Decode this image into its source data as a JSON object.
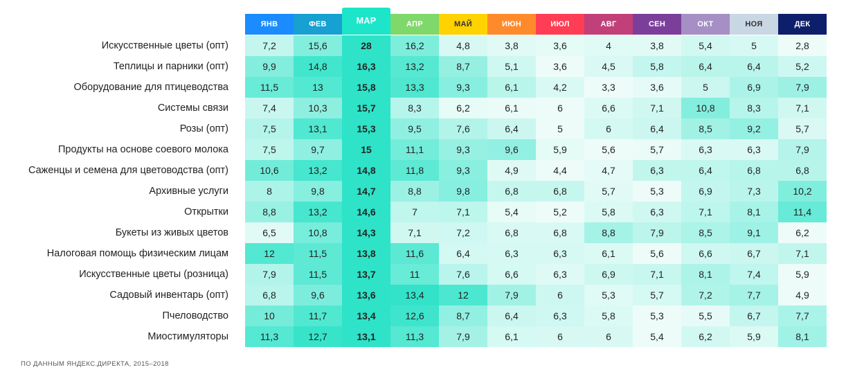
{
  "chart_data": {
    "type": "heatmap",
    "highlight_column": 2,
    "columns": [
      {
        "label": "ЯНВ",
        "color": "#1a8cff",
        "text_color": "#ffffff"
      },
      {
        "label": "ФЕВ",
        "color": "#17a0d2",
        "text_color": "#ffffff"
      },
      {
        "label": "МАР",
        "color": "#1de5c9",
        "text_color": "#ffffff"
      },
      {
        "label": "АПР",
        "color": "#7fd86a",
        "text_color": "#ffffff"
      },
      {
        "label": "МАЙ",
        "color": "#ffd200",
        "text_color": "#333333"
      },
      {
        "label": "ИЮН",
        "color": "#ff8a2b",
        "text_color": "#ffffff"
      },
      {
        "label": "ИЮЛ",
        "color": "#ff3d55",
        "text_color": "#ffffff"
      },
      {
        "label": "АВГ",
        "color": "#c2407a",
        "text_color": "#ffffff"
      },
      {
        "label": "СЕН",
        "color": "#7b3f9b",
        "text_color": "#ffffff"
      },
      {
        "label": "ОКТ",
        "color": "#a58fc4",
        "text_color": "#ffffff"
      },
      {
        "label": "НОЯ",
        "color": "#c9d6e3",
        "text_color": "#333333"
      },
      {
        "label": "ДЕК",
        "color": "#0d1f6b",
        "text_color": "#ffffff"
      }
    ],
    "rows": [
      {
        "label": "Искусственные цветы (опт)",
        "values": [
          "7,2",
          "15,6",
          "28",
          "16,2",
          "4,8",
          "3,8",
          "3,6",
          "4",
          "3,8",
          "5,4",
          "5",
          "2,8"
        ]
      },
      {
        "label": "Теплицы и парники (опт)",
        "values": [
          "9,9",
          "14,8",
          "16,3",
          "13,2",
          "8,7",
          "5,1",
          "3,6",
          "4,5",
          "5,8",
          "6,4",
          "6,4",
          "5,2"
        ]
      },
      {
        "label": "Оборудование для птицеводства",
        "values": [
          "11,5",
          "13",
          "15,8",
          "13,3",
          "9,3",
          "6,1",
          "4,2",
          "3,3",
          "3,6",
          "5",
          "6,9",
          "7,9"
        ]
      },
      {
        "label": "Системы связи",
        "values": [
          "7,4",
          "10,3",
          "15,7",
          "8,3",
          "6,2",
          "6,1",
          "6",
          "6,6",
          "7,1",
          "10,8",
          "8,3",
          "7,1"
        ]
      },
      {
        "label": "Розы (опт)",
        "values": [
          "7,5",
          "13,1",
          "15,3",
          "9,5",
          "7,6",
          "6,4",
          "5",
          "6",
          "6,4",
          "8,5",
          "9,2",
          "5,7"
        ]
      },
      {
        "label": "Продукты на основе соевого молока",
        "values": [
          "7,5",
          "9,7",
          "15",
          "11,1",
          "9,3",
          "9,6",
          "5,9",
          "5,6",
          "5,7",
          "6,3",
          "6,3",
          "7,9"
        ]
      },
      {
        "label": "Саженцы и семена для цветоводства (опт)",
        "values": [
          "10,6",
          "13,2",
          "14,8",
          "11,8",
          "9,3",
          "4,9",
          "4,4",
          "4,7",
          "6,3",
          "6,4",
          "6,8",
          "6,8"
        ]
      },
      {
        "label": "Архивные услуги",
        "values": [
          "8",
          "9,8",
          "14,7",
          "8,8",
          "9,8",
          "6,8",
          "6,8",
          "5,7",
          "5,3",
          "6,9",
          "7,3",
          "10,2"
        ]
      },
      {
        "label": "Открытки",
        "values": [
          "8,8",
          "13,2",
          "14,6",
          "7",
          "7,1",
          "5,4",
          "5,2",
          "5,8",
          "6,3",
          "7,1",
          "8,1",
          "11,4"
        ]
      },
      {
        "label": "Букеты из живых цветов",
        "values": [
          "6,5",
          "10,8",
          "14,3",
          "7,1",
          "7,2",
          "6,8",
          "6,8",
          "8,8",
          "7,9",
          "8,5",
          "9,1",
          "6,2"
        ]
      },
      {
        "label": "Налоговая помощь физическим лицам",
        "values": [
          "12",
          "11,5",
          "13,8",
          "11,6",
          "6,4",
          "6,3",
          "6,3",
          "6,1",
          "5,6",
          "6,6",
          "6,7",
          "7,1"
        ]
      },
      {
        "label": "Искусственные цветы (розница)",
        "values": [
          "7,9",
          "11,5",
          "13,7",
          "11",
          "7,6",
          "6,6",
          "6,3",
          "6,9",
          "7,1",
          "8,1",
          "7,4",
          "5,9"
        ]
      },
      {
        "label": "Садовый инвентарь (опт)",
        "values": [
          "6,8",
          "9,6",
          "13,6",
          "13,4",
          "12",
          "7,9",
          "6",
          "5,3",
          "5,7",
          "7,2",
          "7,7",
          "4,9"
        ]
      },
      {
        "label": "Пчеловодство",
        "values": [
          "10",
          "11,7",
          "13,4",
          "12,6",
          "8,7",
          "6,4",
          "6,3",
          "5,8",
          "5,3",
          "5,5",
          "6,7",
          "7,7"
        ]
      },
      {
        "label": "Миостимуляторы",
        "values": [
          "11,3",
          "12,7",
          "13,1",
          "11,3",
          "7,9",
          "6,1",
          "6",
          "6",
          "5,4",
          "6,2",
          "5,9",
          "8,1"
        ]
      }
    ],
    "color_scale": {
      "low": "#eefcf9",
      "high": "#2ee3c8"
    },
    "source": "ПО ДАННЫМ ЯНДЕКС.ДИРЕКТА, 2015–2018"
  }
}
